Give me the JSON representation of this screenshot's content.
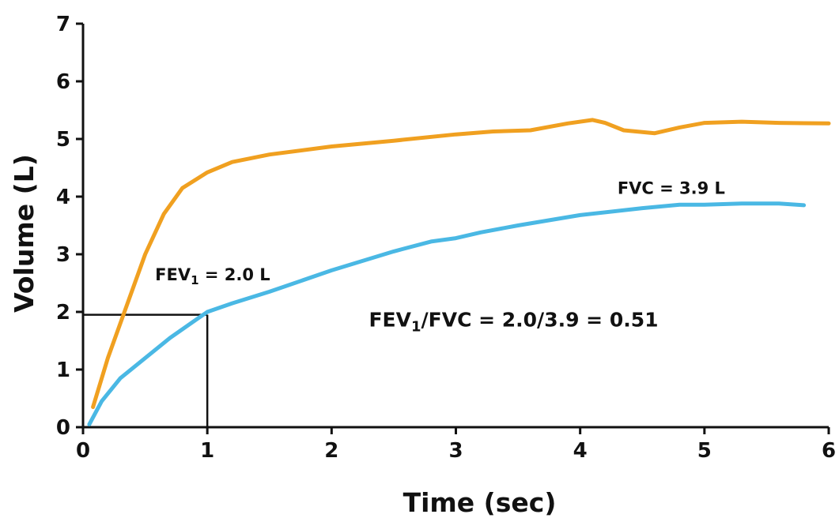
{
  "chart_data": {
    "type": "line",
    "xlabel": "Time (sec)",
    "ylabel": "Volume (L)",
    "xlim": [
      0,
      6
    ],
    "ylim": [
      0,
      7
    ],
    "xticks": [
      0,
      1,
      2,
      3,
      4,
      5,
      6
    ],
    "yticks": [
      0,
      1,
      2,
      3,
      4,
      5,
      6,
      7
    ],
    "grid": false,
    "series": [
      {
        "color": "#f0a020",
        "points": [
          [
            0.08,
            0.35
          ],
          [
            0.2,
            1.2
          ],
          [
            0.35,
            2.1
          ],
          [
            0.5,
            3.0
          ],
          [
            0.65,
            3.7
          ],
          [
            0.8,
            4.15
          ],
          [
            1.0,
            4.42
          ],
          [
            1.2,
            4.6
          ],
          [
            1.5,
            4.73
          ],
          [
            2.0,
            4.87
          ],
          [
            2.5,
            4.97
          ],
          [
            3.0,
            5.08
          ],
          [
            3.3,
            5.13
          ],
          [
            3.6,
            5.15
          ],
          [
            3.9,
            5.27
          ],
          [
            4.1,
            5.33
          ],
          [
            4.2,
            5.28
          ],
          [
            4.35,
            5.15
          ],
          [
            4.6,
            5.1
          ],
          [
            4.8,
            5.2
          ],
          [
            5.0,
            5.28
          ],
          [
            5.3,
            5.3
          ],
          [
            5.6,
            5.28
          ],
          [
            6.0,
            5.27
          ]
        ]
      },
      {
        "color": "#4ab8e4",
        "points": [
          [
            0.05,
            0.05
          ],
          [
            0.15,
            0.45
          ],
          [
            0.3,
            0.85
          ],
          [
            0.5,
            1.2
          ],
          [
            0.7,
            1.55
          ],
          [
            0.9,
            1.85
          ],
          [
            1.0,
            2.0
          ],
          [
            1.2,
            2.15
          ],
          [
            1.5,
            2.35
          ],
          [
            2.0,
            2.72
          ],
          [
            2.5,
            3.05
          ],
          [
            2.8,
            3.22
          ],
          [
            3.0,
            3.28
          ],
          [
            3.2,
            3.38
          ],
          [
            3.5,
            3.5
          ],
          [
            4.0,
            3.68
          ],
          [
            4.5,
            3.8
          ],
          [
            4.8,
            3.86
          ],
          [
            5.0,
            3.86
          ],
          [
            5.3,
            3.88
          ],
          [
            5.6,
            3.88
          ],
          [
            5.8,
            3.85
          ]
        ]
      }
    ],
    "guides": {
      "x": 1,
      "y": 1.95
    },
    "annotations": [
      {
        "id": "fev1",
        "main": "FEV",
        "sub": "1",
        "rest": " = 2.0 L",
        "x": 0.58,
        "y": 2.55
      },
      {
        "id": "fvc",
        "main": "FVC = 3.9 L",
        "sub": "",
        "rest": "",
        "x": 4.3,
        "y": 4.05
      },
      {
        "id": "ratio",
        "main": "FEV",
        "sub": "1",
        "rest": "/FVC = 2.0/3.9 = 0.51",
        "x": 2.3,
        "y": 1.75
      }
    ]
  }
}
